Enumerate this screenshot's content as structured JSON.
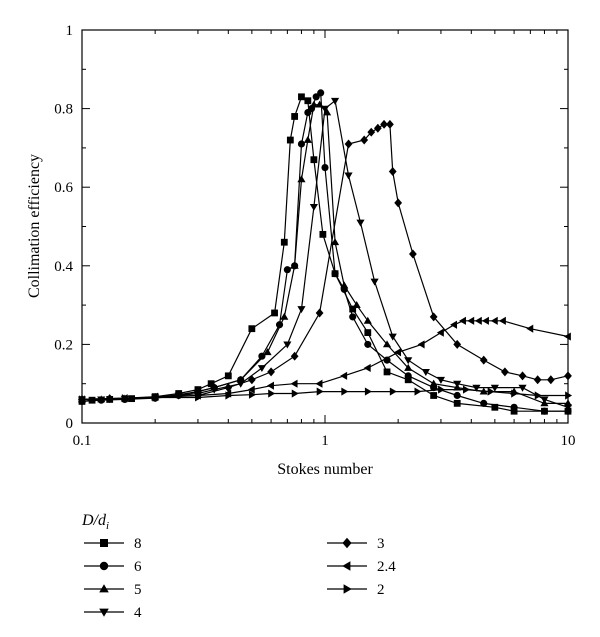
{
  "chart_data": {
    "type": "line",
    "xlabel": "Stokes number",
    "ylabel": "Collimation efficiency",
    "xscale": "log",
    "xlim": [
      0.1,
      10
    ],
    "ylim": [
      0,
      1
    ],
    "x_ticks": [
      {
        "value": 0.1,
        "label": "0.1"
      },
      {
        "value": 1,
        "label": "1"
      },
      {
        "value": 10,
        "label": "10"
      }
    ],
    "y_ticks": [
      {
        "value": 0,
        "label": "0"
      },
      {
        "value": 0.2,
        "label": "0.2"
      },
      {
        "value": 0.4,
        "label": "0.4"
      },
      {
        "value": 0.6,
        "label": "0.6"
      },
      {
        "value": 0.8,
        "label": "0.8"
      },
      {
        "value": 1,
        "label": "1"
      }
    ],
    "grid": false,
    "legend": {
      "title": "D/d",
      "title_subscript": "i",
      "placement": "below-left"
    },
    "series": [
      {
        "name": "8",
        "marker": "square",
        "points": [
          [
            0.1,
            0.055
          ],
          [
            0.11,
            0.058
          ],
          [
            0.13,
            0.06
          ],
          [
            0.16,
            0.062
          ],
          [
            0.2,
            0.067
          ],
          [
            0.25,
            0.075
          ],
          [
            0.3,
            0.085
          ],
          [
            0.34,
            0.1
          ],
          [
            0.4,
            0.12
          ],
          [
            0.5,
            0.24
          ],
          [
            0.62,
            0.28
          ],
          [
            0.68,
            0.46
          ],
          [
            0.72,
            0.72
          ],
          [
            0.75,
            0.78
          ],
          [
            0.8,
            0.83
          ],
          [
            0.85,
            0.82
          ],
          [
            0.9,
            0.67
          ],
          [
            0.98,
            0.48
          ],
          [
            1.1,
            0.38
          ],
          [
            1.3,
            0.29
          ],
          [
            1.5,
            0.23
          ],
          [
            1.8,
            0.13
          ],
          [
            2.2,
            0.11
          ],
          [
            2.8,
            0.07
          ],
          [
            3.5,
            0.05
          ],
          [
            5,
            0.04
          ],
          [
            6,
            0.03
          ],
          [
            8,
            0.03
          ],
          [
            10,
            0.03
          ]
        ]
      },
      {
        "name": "6",
        "marker": "circle",
        "points": [
          [
            0.1,
            0.055
          ],
          [
            0.12,
            0.058
          ],
          [
            0.15,
            0.06
          ],
          [
            0.2,
            0.063
          ],
          [
            0.25,
            0.07
          ],
          [
            0.3,
            0.08
          ],
          [
            0.35,
            0.09
          ],
          [
            0.45,
            0.11
          ],
          [
            0.55,
            0.17
          ],
          [
            0.65,
            0.25
          ],
          [
            0.7,
            0.39
          ],
          [
            0.75,
            0.4
          ],
          [
            0.8,
            0.71
          ],
          [
            0.85,
            0.79
          ],
          [
            0.88,
            0.8
          ],
          [
            0.92,
            0.83
          ],
          [
            0.96,
            0.84
          ],
          [
            1,
            0.65
          ],
          [
            1.1,
            0.38
          ],
          [
            1.2,
            0.34
          ],
          [
            1.3,
            0.27
          ],
          [
            1.5,
            0.2
          ],
          [
            1.8,
            0.16
          ],
          [
            2.2,
            0.12
          ],
          [
            2.8,
            0.09
          ],
          [
            3.5,
            0.07
          ],
          [
            4.5,
            0.05
          ],
          [
            6,
            0.04
          ],
          [
            8,
            0.03
          ],
          [
            10,
            0.03
          ]
        ]
      },
      {
        "name": "5",
        "marker": "triangle-up",
        "points": [
          [
            0.1,
            0.06
          ],
          [
            0.12,
            0.06
          ],
          [
            0.15,
            0.062
          ],
          [
            0.2,
            0.065
          ],
          [
            0.25,
            0.072
          ],
          [
            0.3,
            0.08
          ],
          [
            0.35,
            0.09
          ],
          [
            0.45,
            0.11
          ],
          [
            0.58,
            0.18
          ],
          [
            0.68,
            0.27
          ],
          [
            0.75,
            0.4
          ],
          [
            0.8,
            0.62
          ],
          [
            0.85,
            0.72
          ],
          [
            0.9,
            0.81
          ],
          [
            0.95,
            0.81
          ],
          [
            1.02,
            0.79
          ],
          [
            1.1,
            0.46
          ],
          [
            1.2,
            0.35
          ],
          [
            1.35,
            0.3
          ],
          [
            1.5,
            0.26
          ],
          [
            1.8,
            0.2
          ],
          [
            2.2,
            0.14
          ],
          [
            2.8,
            0.1
          ],
          [
            3.5,
            0.09
          ],
          [
            4.5,
            0.08
          ],
          [
            6,
            0.08
          ],
          [
            8,
            0.05
          ],
          [
            10,
            0.05
          ]
        ]
      },
      {
        "name": "4",
        "marker": "triangle-down",
        "points": [
          [
            0.1,
            0.06
          ],
          [
            0.12,
            0.06
          ],
          [
            0.15,
            0.062
          ],
          [
            0.2,
            0.065
          ],
          [
            0.25,
            0.07
          ],
          [
            0.3,
            0.075
          ],
          [
            0.35,
            0.085
          ],
          [
            0.45,
            0.1
          ],
          [
            0.55,
            0.14
          ],
          [
            0.7,
            0.2
          ],
          [
            0.8,
            0.29
          ],
          [
            0.9,
            0.55
          ],
          [
            1,
            0.8
          ],
          [
            1.1,
            0.82
          ],
          [
            1.25,
            0.63
          ],
          [
            1.4,
            0.51
          ],
          [
            1.6,
            0.36
          ],
          [
            1.9,
            0.22
          ],
          [
            2.2,
            0.16
          ],
          [
            2.6,
            0.13
          ],
          [
            3,
            0.11
          ],
          [
            3.5,
            0.1
          ],
          [
            4.2,
            0.09
          ],
          [
            5,
            0.09
          ],
          [
            6.5,
            0.09
          ],
          [
            8,
            0.06
          ],
          [
            10,
            0.04
          ]
        ]
      },
      {
        "name": "3",
        "marker": "diamond",
        "points": [
          [
            0.1,
            0.06
          ],
          [
            0.13,
            0.062
          ],
          [
            0.2,
            0.065
          ],
          [
            0.3,
            0.07
          ],
          [
            0.4,
            0.09
          ],
          [
            0.5,
            0.11
          ],
          [
            0.6,
            0.13
          ],
          [
            0.75,
            0.17
          ],
          [
            0.95,
            0.28
          ],
          [
            1.25,
            0.71
          ],
          [
            1.45,
            0.72
          ],
          [
            1.55,
            0.74
          ],
          [
            1.65,
            0.75
          ],
          [
            1.75,
            0.76
          ],
          [
            1.85,
            0.76
          ],
          [
            1.9,
            0.64
          ],
          [
            2,
            0.56
          ],
          [
            2.3,
            0.43
          ],
          [
            2.8,
            0.27
          ],
          [
            3.5,
            0.2
          ],
          [
            4.5,
            0.16
          ],
          [
            5.5,
            0.13
          ],
          [
            6.5,
            0.12
          ],
          [
            7.5,
            0.11
          ],
          [
            8.5,
            0.11
          ],
          [
            10,
            0.12
          ]
        ]
      },
      {
        "name": "2.4",
        "marker": "triangle-left",
        "points": [
          [
            0.1,
            0.06
          ],
          [
            0.15,
            0.063
          ],
          [
            0.2,
            0.067
          ],
          [
            0.3,
            0.07
          ],
          [
            0.4,
            0.075
          ],
          [
            0.5,
            0.085
          ],
          [
            0.6,
            0.095
          ],
          [
            0.75,
            0.1
          ],
          [
            0.95,
            0.1
          ],
          [
            1.2,
            0.12
          ],
          [
            1.5,
            0.14
          ],
          [
            2,
            0.18
          ],
          [
            2.5,
            0.2
          ],
          [
            3,
            0.23
          ],
          [
            3.4,
            0.25
          ],
          [
            3.7,
            0.26
          ],
          [
            4,
            0.26
          ],
          [
            4.3,
            0.26
          ],
          [
            4.6,
            0.26
          ],
          [
            5,
            0.26
          ],
          [
            5.4,
            0.26
          ],
          [
            7,
            0.24
          ],
          [
            10,
            0.22
          ]
        ]
      },
      {
        "name": "2",
        "marker": "triangle-right",
        "points": [
          [
            0.1,
            0.06
          ],
          [
            0.15,
            0.063
          ],
          [
            0.2,
            0.065
          ],
          [
            0.3,
            0.065
          ],
          [
            0.4,
            0.07
          ],
          [
            0.5,
            0.072
          ],
          [
            0.6,
            0.075
          ],
          [
            0.75,
            0.075
          ],
          [
            0.95,
            0.08
          ],
          [
            1.2,
            0.08
          ],
          [
            1.5,
            0.08
          ],
          [
            1.9,
            0.08
          ],
          [
            2.4,
            0.08
          ],
          [
            3,
            0.085
          ],
          [
            3.8,
            0.085
          ],
          [
            4.8,
            0.08
          ],
          [
            6,
            0.075
          ],
          [
            7.5,
            0.07
          ],
          [
            10,
            0.07
          ]
        ]
      }
    ]
  }
}
